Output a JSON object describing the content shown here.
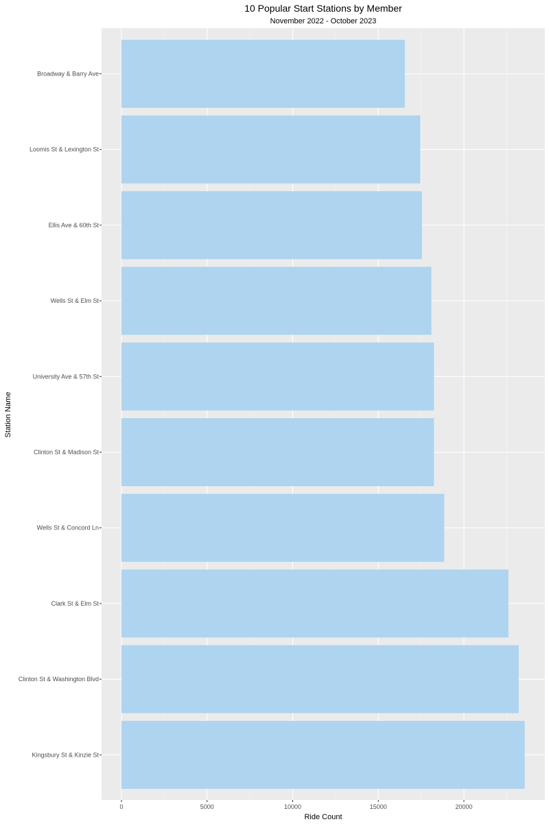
{
  "chart_data": {
    "type": "bar",
    "orientation": "horizontal",
    "title": "10 Popular Start Stations by Member",
    "subtitle": "November 2022 - October 2023",
    "xlabel": "Ride Count",
    "ylabel": "Station Name",
    "categories": [
      "Broadway & Barry Ave",
      "Loomis St & Lexington St",
      "Ellis Ave & 60th St",
      "Wells St & Elm St",
      "University Ave & 57th St",
      "Clinton St & Madison St",
      "Wells St & Concord Ln",
      "Clark St & Elm St",
      "Clinton St & Washington Blvd",
      "Kingsbury St & Kinzie St"
    ],
    "values": [
      16550,
      17450,
      17550,
      18100,
      18250,
      18250,
      18850,
      22600,
      23200,
      23550
    ],
    "xlim": [
      0,
      24000
    ],
    "x_ticks": [
      0,
      5000,
      10000,
      15000,
      20000
    ],
    "x_tick_labels": [
      "0",
      "5000",
      "10000",
      "15000",
      "20000"
    ],
    "grid": true,
    "colors": {
      "bar": "#aed4ef",
      "panel_background": "#ebebeb",
      "grid_major": "#ffffff",
      "grid_minor": "#f4f4f4"
    }
  }
}
